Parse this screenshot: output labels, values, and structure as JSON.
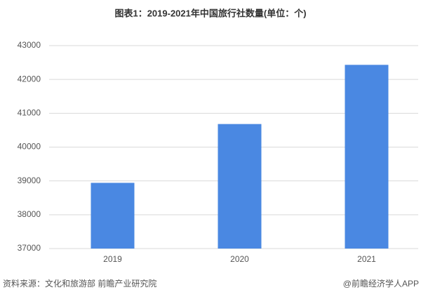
{
  "chart_data": {
    "type": "bar",
    "title": "图表1：2019-2021年中国旅行社数量(单位：个)",
    "categories": [
      "2019",
      "2020",
      "2021"
    ],
    "values": [
      38943,
      40682,
      42432
    ],
    "color": "#4a88e2",
    "ylim": [
      37000,
      43000
    ],
    "yticks": [
      37000,
      38000,
      39000,
      40000,
      41000,
      42000,
      43000
    ],
    "grid": true,
    "source": "资料来源：文化和旅游部 前瞻产业研究院",
    "credit": "@前瞻经济学人APP"
  }
}
